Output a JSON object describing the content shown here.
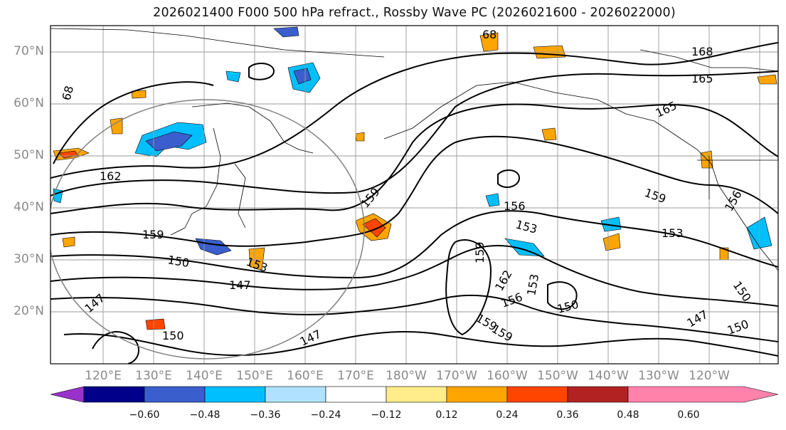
{
  "title": "2026021400 F000 500 hPa refract., Rossby Wave PC (2026021600 - 2026022000)",
  "map": {
    "lat_labels": [
      "70°N",
      "60°N",
      "50°N",
      "40°N",
      "30°N",
      "20°N"
    ],
    "lon_labels": [
      "120°E",
      "130°E",
      "140°E",
      "150°E",
      "160°E",
      "170°E",
      "180°W",
      "170°W",
      "160°W",
      "150°W",
      "140°W",
      "130°W",
      "120°W"
    ],
    "contour_labels": [
      "68",
      "68",
      "168",
      "165",
      "165",
      "162",
      "159",
      "159",
      "159",
      "159",
      "156",
      "156",
      "153",
      "153",
      "153",
      "153",
      "150",
      "150",
      "150",
      "150",
      "150",
      "147",
      "147",
      "147",
      "147",
      "162",
      "159",
      "156",
      "159"
    ]
  },
  "colorbar": {
    "ticks": [
      "−0.60",
      "−0.48",
      "−0.36",
      "−0.24",
      "−0.12",
      "0.12",
      "0.24",
      "0.36",
      "0.48",
      "0.60"
    ],
    "colors": [
      "#9932cc",
      "#00008b",
      "#3a5fcd",
      "#00bfff",
      "#b0e2ff",
      "#ffffff",
      "#ffec8b",
      "#ffa500",
      "#ff4500",
      "#b22222",
      "#ff82ab"
    ]
  }
}
